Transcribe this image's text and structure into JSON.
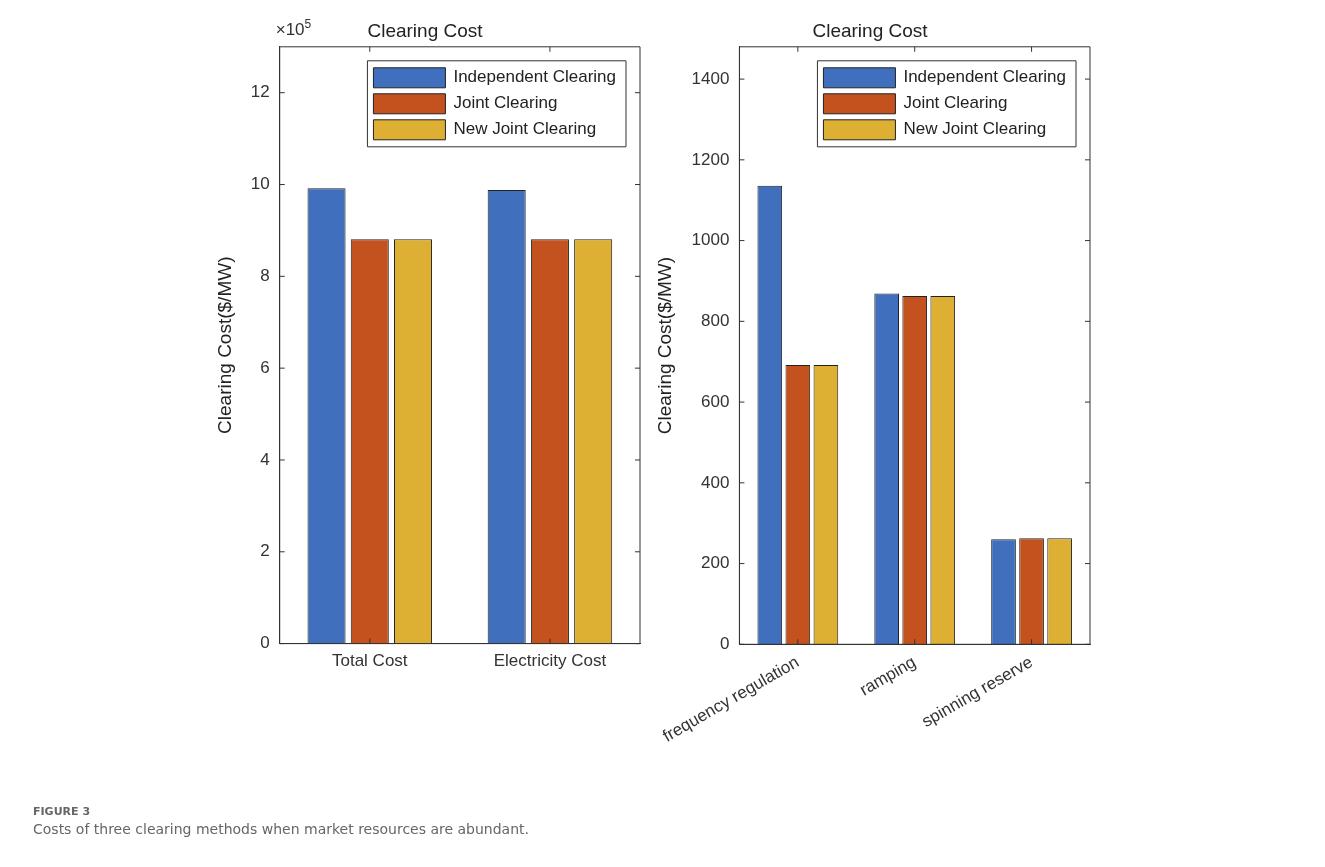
{
  "chart_data": [
    {
      "type": "bar",
      "title": "Clearing Cost",
      "ylabel": "Clearing Cost($/MW)",
      "categories": [
        "Total Cost",
        "Electricity Cost"
      ],
      "series": [
        {
          "name": "Independent Clearing",
          "color": "#3f6fbd",
          "values": [
            9.92,
            9.88
          ]
        },
        {
          "name": "Joint Clearing",
          "color": "#c4521f",
          "values": [
            8.81,
            8.81
          ]
        },
        {
          "name": "New Joint Clearing",
          "color": "#ddb034",
          "values": [
            8.81,
            8.81
          ]
        }
      ],
      "ylim": [
        0,
        13
      ],
      "yticks": [
        0,
        2,
        4,
        6,
        8,
        10,
        12
      ],
      "annotations": [
        "×10$^{5}$"
      ],
      "legend": "top right",
      "grid": false
    },
    {
      "type": "bar",
      "title": "Clearing Cost",
      "ylabel": "Clearing Cost($/MW)",
      "categories": [
        "frequency regulation",
        "ramping",
        "spinning reserve"
      ],
      "series": [
        {
          "name": "Independent Clearing",
          "color": "#3f6fbd",
          "values": [
            1136,
            869,
            260
          ]
        },
        {
          "name": "Joint Clearing",
          "color": "#c4521f",
          "values": [
            692,
            863,
            263
          ]
        },
        {
          "name": "New Joint Clearing",
          "color": "#ddb034",
          "values": [
            692,
            863,
            263
          ]
        }
      ],
      "ylim": [
        0,
        1480
      ],
      "yticks": [
        0,
        200,
        400,
        600,
        800,
        1000,
        1200,
        1400
      ],
      "annotations": [
        "FIGURE 3",
        "Costs of three clearing methods when market resources are abundant."
      ],
      "legend": "top right",
      "grid": false
    }
  ]
}
